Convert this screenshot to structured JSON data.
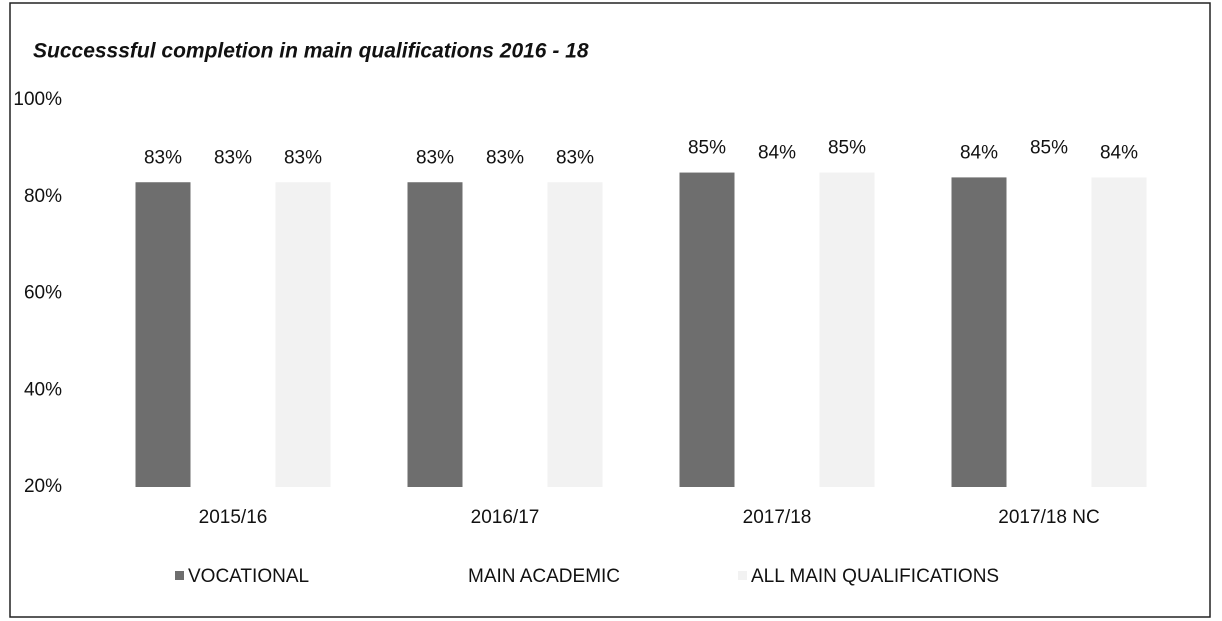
{
  "chart_data": {
    "type": "bar",
    "title": "Successsful completion in main qualifications 2016 - 18",
    "categories": [
      "2015/16",
      "2016/17",
      "2017/18",
      "2017/18 NC"
    ],
    "series": [
      {
        "name": "VOCATIONAL",
        "color": "#6e6e6e",
        "values": [
          83,
          83,
          85,
          84
        ],
        "value_labels": [
          "83%",
          "83%",
          "85%",
          "84%"
        ]
      },
      {
        "name": "MAIN ACADEMIC",
        "color": "#ffffff",
        "values": [
          83,
          83,
          84,
          85
        ],
        "value_labels": [
          "83%",
          "83%",
          "84%",
          "85%"
        ]
      },
      {
        "name": "ALL MAIN QUALIFICATIONS",
        "color": "#f2f2f2",
        "values": [
          83,
          83,
          85,
          84
        ],
        "value_labels": [
          "83%",
          "83%",
          "85%",
          "84%"
        ]
      }
    ],
    "ylim": [
      20,
      100
    ],
    "yticks": [
      {
        "value": 20,
        "label": "20%"
      },
      {
        "value": 40,
        "label": "40%"
      },
      {
        "value": 60,
        "label": "60%"
      },
      {
        "value": 80,
        "label": "80%"
      },
      {
        "value": 100,
        "label": "100%"
      }
    ],
    "grid": false,
    "legend": "bottom"
  }
}
